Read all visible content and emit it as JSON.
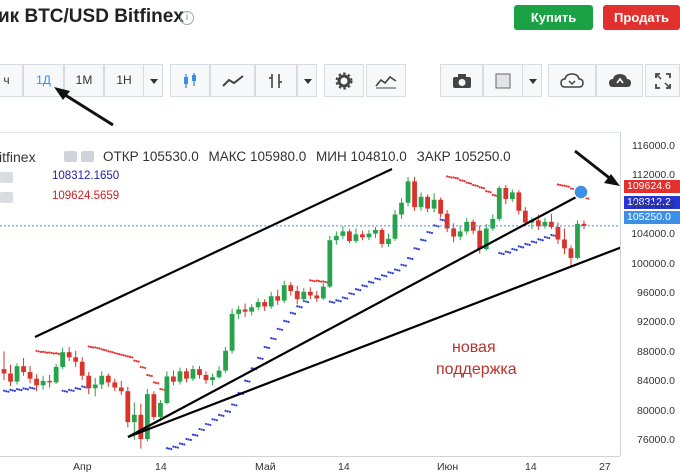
{
  "header": {
    "title": "ик BTC/USD Bitfinex",
    "info_icon": "info-icon",
    "buy_label": "Купить",
    "sell_label": "Продать",
    "buy_color": "#1aa245",
    "sell_color": "#e0312e"
  },
  "toolbar": {
    "intervals": [
      "ч",
      "1Д",
      "1М",
      "1Н"
    ],
    "active_interval": "1Д",
    "icons": [
      "candles-icon",
      "area-icon",
      "compare-icon",
      "gear-icon",
      "indicators-icon",
      "camera-icon",
      "color-swatch-icon",
      "cloud-download-icon",
      "cloud-upload-icon",
      "fullscreen-icon"
    ]
  },
  "legend": {
    "symbol": "itfinex",
    "open_label": "ОТКР",
    "open": "105530.0",
    "high_label": "МАКС",
    "high": "105980.0",
    "low_label": "МИН",
    "low": "104810.0",
    "close_label": "ЗАКР",
    "close": "105250.0",
    "indicator1": "108312.1650",
    "indicator2": "109624.5659"
  },
  "price_scale": {
    "ticks": [
      "116000.0",
      "112000.0",
      "108000.0",
      "104000.0",
      "100000.0",
      "96000.0",
      "92000.0",
      "88000.0",
      "84000.0",
      "80000.0",
      "76000.0"
    ],
    "tag_red": "109624.6",
    "tag_blue": "108312.2",
    "tag_current": "105250.0"
  },
  "time_scale": {
    "ticks": [
      "Апр",
      "14",
      "Май",
      "14",
      "Июн",
      "14",
      "27"
    ]
  },
  "annotation": {
    "line1": "новая",
    "line2": "поддержка",
    "color": "#b8332c"
  },
  "colors": {
    "up": "#27a34b",
    "down": "#d9342b",
    "sar_blue": "#2e3fd0",
    "sar_red": "#e0332b"
  },
  "chart_data": {
    "type": "candlestick",
    "title": "BTC/USD Bitfinex",
    "ylim": [
      74000,
      118000
    ],
    "ohlc": [
      [
        85800,
        88200,
        84300,
        85200
      ],
      [
        85200,
        86400,
        83500,
        84100
      ],
      [
        84100,
        86600,
        83700,
        86200
      ],
      [
        86200,
        87300,
        84900,
        85400
      ],
      [
        85400,
        86200,
        83900,
        84500
      ],
      [
        84500,
        85100,
        82800,
        83600
      ],
      [
        83600,
        84900,
        83000,
        84200
      ],
      [
        84200,
        85000,
        83300,
        84000
      ],
      [
        84000,
        86500,
        83800,
        86100
      ],
      [
        86100,
        88700,
        85800,
        88100
      ],
      [
        88100,
        88800,
        86900,
        87400
      ],
      [
        87400,
        88300,
        86100,
        86800
      ],
      [
        86800,
        87400,
        84300,
        84900
      ],
      [
        84900,
        85400,
        82400,
        83200
      ],
      [
        83200,
        84600,
        82100,
        83700
      ],
      [
        83700,
        85500,
        83100,
        84900
      ],
      [
        84900,
        85200,
        83400,
        84000
      ],
      [
        84000,
        84500,
        82800,
        83300
      ],
      [
        83300,
        84200,
        82300,
        82800
      ],
      [
        82800,
        83400,
        77900,
        78600
      ],
      [
        78600,
        81300,
        76200,
        79600
      ],
      [
        79600,
        81100,
        75000,
        76300
      ],
      [
        76300,
        83100,
        76000,
        82400
      ],
      [
        82400,
        82800,
        78900,
        79300
      ],
      [
        79300,
        81600,
        78700,
        81200
      ],
      [
        81200,
        85500,
        81000,
        84800
      ],
      [
        84800,
        85600,
        83600,
        84100
      ],
      [
        84100,
        86000,
        83700,
        85500
      ],
      [
        85500,
        85900,
        84000,
        84500
      ],
      [
        84500,
        86300,
        84200,
        85800
      ],
      [
        85800,
        86200,
        84500,
        85000
      ],
      [
        85000,
        85500,
        83800,
        84300
      ],
      [
        84300,
        85200,
        83600,
        84700
      ],
      [
        84700,
        86200,
        84500,
        85600
      ],
      [
        85600,
        88800,
        85300,
        88300
      ],
      [
        88300,
        94000,
        87900,
        93300
      ],
      [
        93300,
        94400,
        92600,
        93900
      ],
      [
        93900,
        94700,
        92900,
        93600
      ],
      [
        93600,
        94600,
        93100,
        94200
      ],
      [
        94200,
        95400,
        93800,
        94900
      ],
      [
        94900,
        95300,
        93700,
        94300
      ],
      [
        94300,
        96300,
        94000,
        95700
      ],
      [
        95700,
        96600,
        94500,
        95100
      ],
      [
        95100,
        97800,
        94800,
        97200
      ],
      [
        97200,
        97600,
        95800,
        96400
      ],
      [
        96400,
        97100,
        94600,
        95300
      ],
      [
        95300,
        96800,
        95000,
        96300
      ],
      [
        96300,
        96900,
        95300,
        95800
      ],
      [
        95800,
        96400,
        94900,
        95400
      ],
      [
        95400,
        97500,
        95200,
        97000
      ],
      [
        97000,
        103900,
        96800,
        103300
      ],
      [
        103300,
        104500,
        102700,
        103900
      ],
      [
        103900,
        105200,
        103500,
        104500
      ],
      [
        104500,
        104800,
        102900,
        103200
      ],
      [
        103200,
        104900,
        102900,
        104100
      ],
      [
        104100,
        104600,
        103300,
        103700
      ],
      [
        103700,
        104700,
        103300,
        104200
      ],
      [
        104200,
        105100,
        103600,
        104700
      ],
      [
        104700,
        105000,
        102300,
        102800
      ],
      [
        102800,
        104200,
        102400,
        103500
      ],
      [
        103500,
        107400,
        103200,
        106800
      ],
      [
        106800,
        109000,
        106200,
        108400
      ],
      [
        108400,
        111900,
        107900,
        111300
      ],
      [
        111300,
        111900,
        107300,
        107800
      ],
      [
        107800,
        109800,
        107300,
        109200
      ],
      [
        109200,
        109500,
        107100,
        107600
      ],
      [
        107600,
        109700,
        107100,
        108800
      ],
      [
        108800,
        109100,
        106400,
        106900
      ],
      [
        106900,
        107400,
        104400,
        104900
      ],
      [
        104900,
        105600,
        103000,
        103800
      ],
      [
        103800,
        105300,
        103300,
        104500
      ],
      [
        104500,
        106300,
        104100,
        105800
      ],
      [
        105800,
        106100,
        104100,
        104600
      ],
      [
        104600,
        105300,
        101500,
        102100
      ],
      [
        102100,
        105500,
        101900,
        104900
      ],
      [
        104900,
        106800,
        104600,
        106200
      ],
      [
        106200,
        110700,
        105900,
        110400
      ],
      [
        110400,
        110800,
        108200,
        108900
      ],
      [
        108900,
        110200,
        108500,
        109800
      ],
      [
        109800,
        110100,
        106800,
        107300
      ],
      [
        107300,
        107800,
        105200,
        105700
      ],
      [
        105700,
        106400,
        104800,
        106000
      ],
      [
        106000,
        106800,
        104700,
        105200
      ],
      [
        105200,
        106300,
        104900,
        105800
      ],
      [
        105800,
        106900,
        104800,
        105100
      ],
      [
        105100,
        105700,
        102800,
        103400
      ],
      [
        103400,
        104900,
        101400,
        102200
      ],
      [
        102200,
        102600,
        99600,
        100900
      ],
      [
        100900,
        106000,
        100700,
        105530
      ],
      [
        105530,
        105980,
        104810,
        105250
      ]
    ]
  }
}
